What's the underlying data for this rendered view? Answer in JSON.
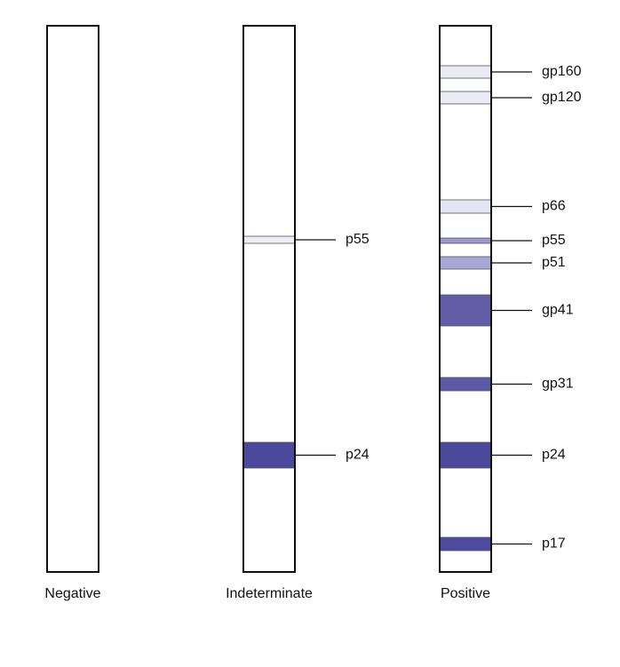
{
  "strips": [
    {
      "label": "Negative",
      "bands": []
    },
    {
      "label": "Indeterminate",
      "bands": [
        {
          "label": "p55",
          "color": "#ededf6"
        },
        {
          "label": "p24",
          "color": "#4c489c"
        }
      ]
    },
    {
      "label": "Positive",
      "bands": [
        {
          "label": "gp160",
          "color": "#ebebf5"
        },
        {
          "label": "gp120",
          "color": "#ebebf5"
        },
        {
          "label": "p66",
          "color": "#e4e4f2"
        },
        {
          "label": "p55",
          "color": "#9c9ad0"
        },
        {
          "label": "p51",
          "color": "#a9a7d6"
        },
        {
          "label": "gp41",
          "color": "#615da6"
        },
        {
          "label": "gp31",
          "color": "#5d59a6"
        },
        {
          "label": "p24",
          "color": "#4c489c"
        },
        {
          "label": "p17",
          "color": "#4f4ba0"
        }
      ]
    }
  ]
}
